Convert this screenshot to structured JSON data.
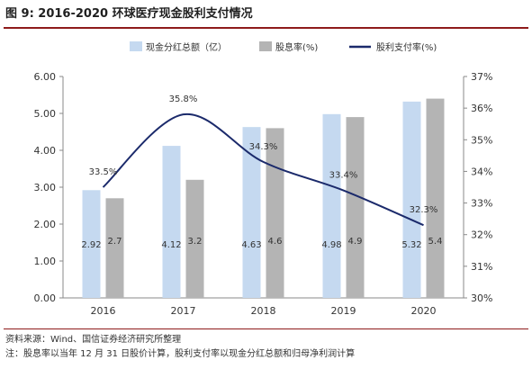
{
  "figure": {
    "title": "图 9:  2016-2020 环球医疗现金股利支付情况",
    "source": "资料来源：Wind、国信证券经济研究所整理",
    "note": "注：股息率以当年 12 月 31 日股价计算，股利支付率以现金分红总额和归母净利润计算"
  },
  "colors": {
    "dividend_bar": "#c5d9f0",
    "yield_bar": "#b4b4b4",
    "payout_line": "#1b2a6b",
    "rule": "#8e1b1b"
  },
  "chart_data": {
    "type": "bar",
    "categories": [
      "2016",
      "2017",
      "2018",
      "2019",
      "2020"
    ],
    "series": [
      {
        "name": "现金分红总额（亿）",
        "type": "bar",
        "axis": "left",
        "values": [
          2.92,
          4.12,
          4.63,
          4.98,
          5.32
        ],
        "labels": [
          "2.92",
          "4.12",
          "4.63",
          "4.98",
          "5.32"
        ]
      },
      {
        "name": "股息率(%)",
        "type": "bar",
        "axis": "left",
        "values": [
          2.7,
          3.2,
          4.6,
          4.9,
          5.4
        ],
        "labels": [
          "2.7",
          "3.2",
          "4.6",
          "4.9",
          "5.4"
        ]
      },
      {
        "name": "股利支付率(%)",
        "type": "line",
        "axis": "right",
        "values": [
          33.5,
          35.8,
          34.3,
          33.4,
          32.3
        ],
        "labels": [
          "33.5%",
          "35.8%",
          "34.3%",
          "33.4%",
          "32.3%"
        ]
      }
    ],
    "y_left": {
      "min": 0,
      "max": 6,
      "ticks": [
        "0.00",
        "1.00",
        "2.00",
        "3.00",
        "4.00",
        "5.00",
        "6.00"
      ]
    },
    "y_right": {
      "min": 30,
      "max": 37,
      "ticks": [
        "30%",
        "31%",
        "32%",
        "33%",
        "34%",
        "35%",
        "36%",
        "37%"
      ]
    },
    "grid": false,
    "legend": "top"
  }
}
